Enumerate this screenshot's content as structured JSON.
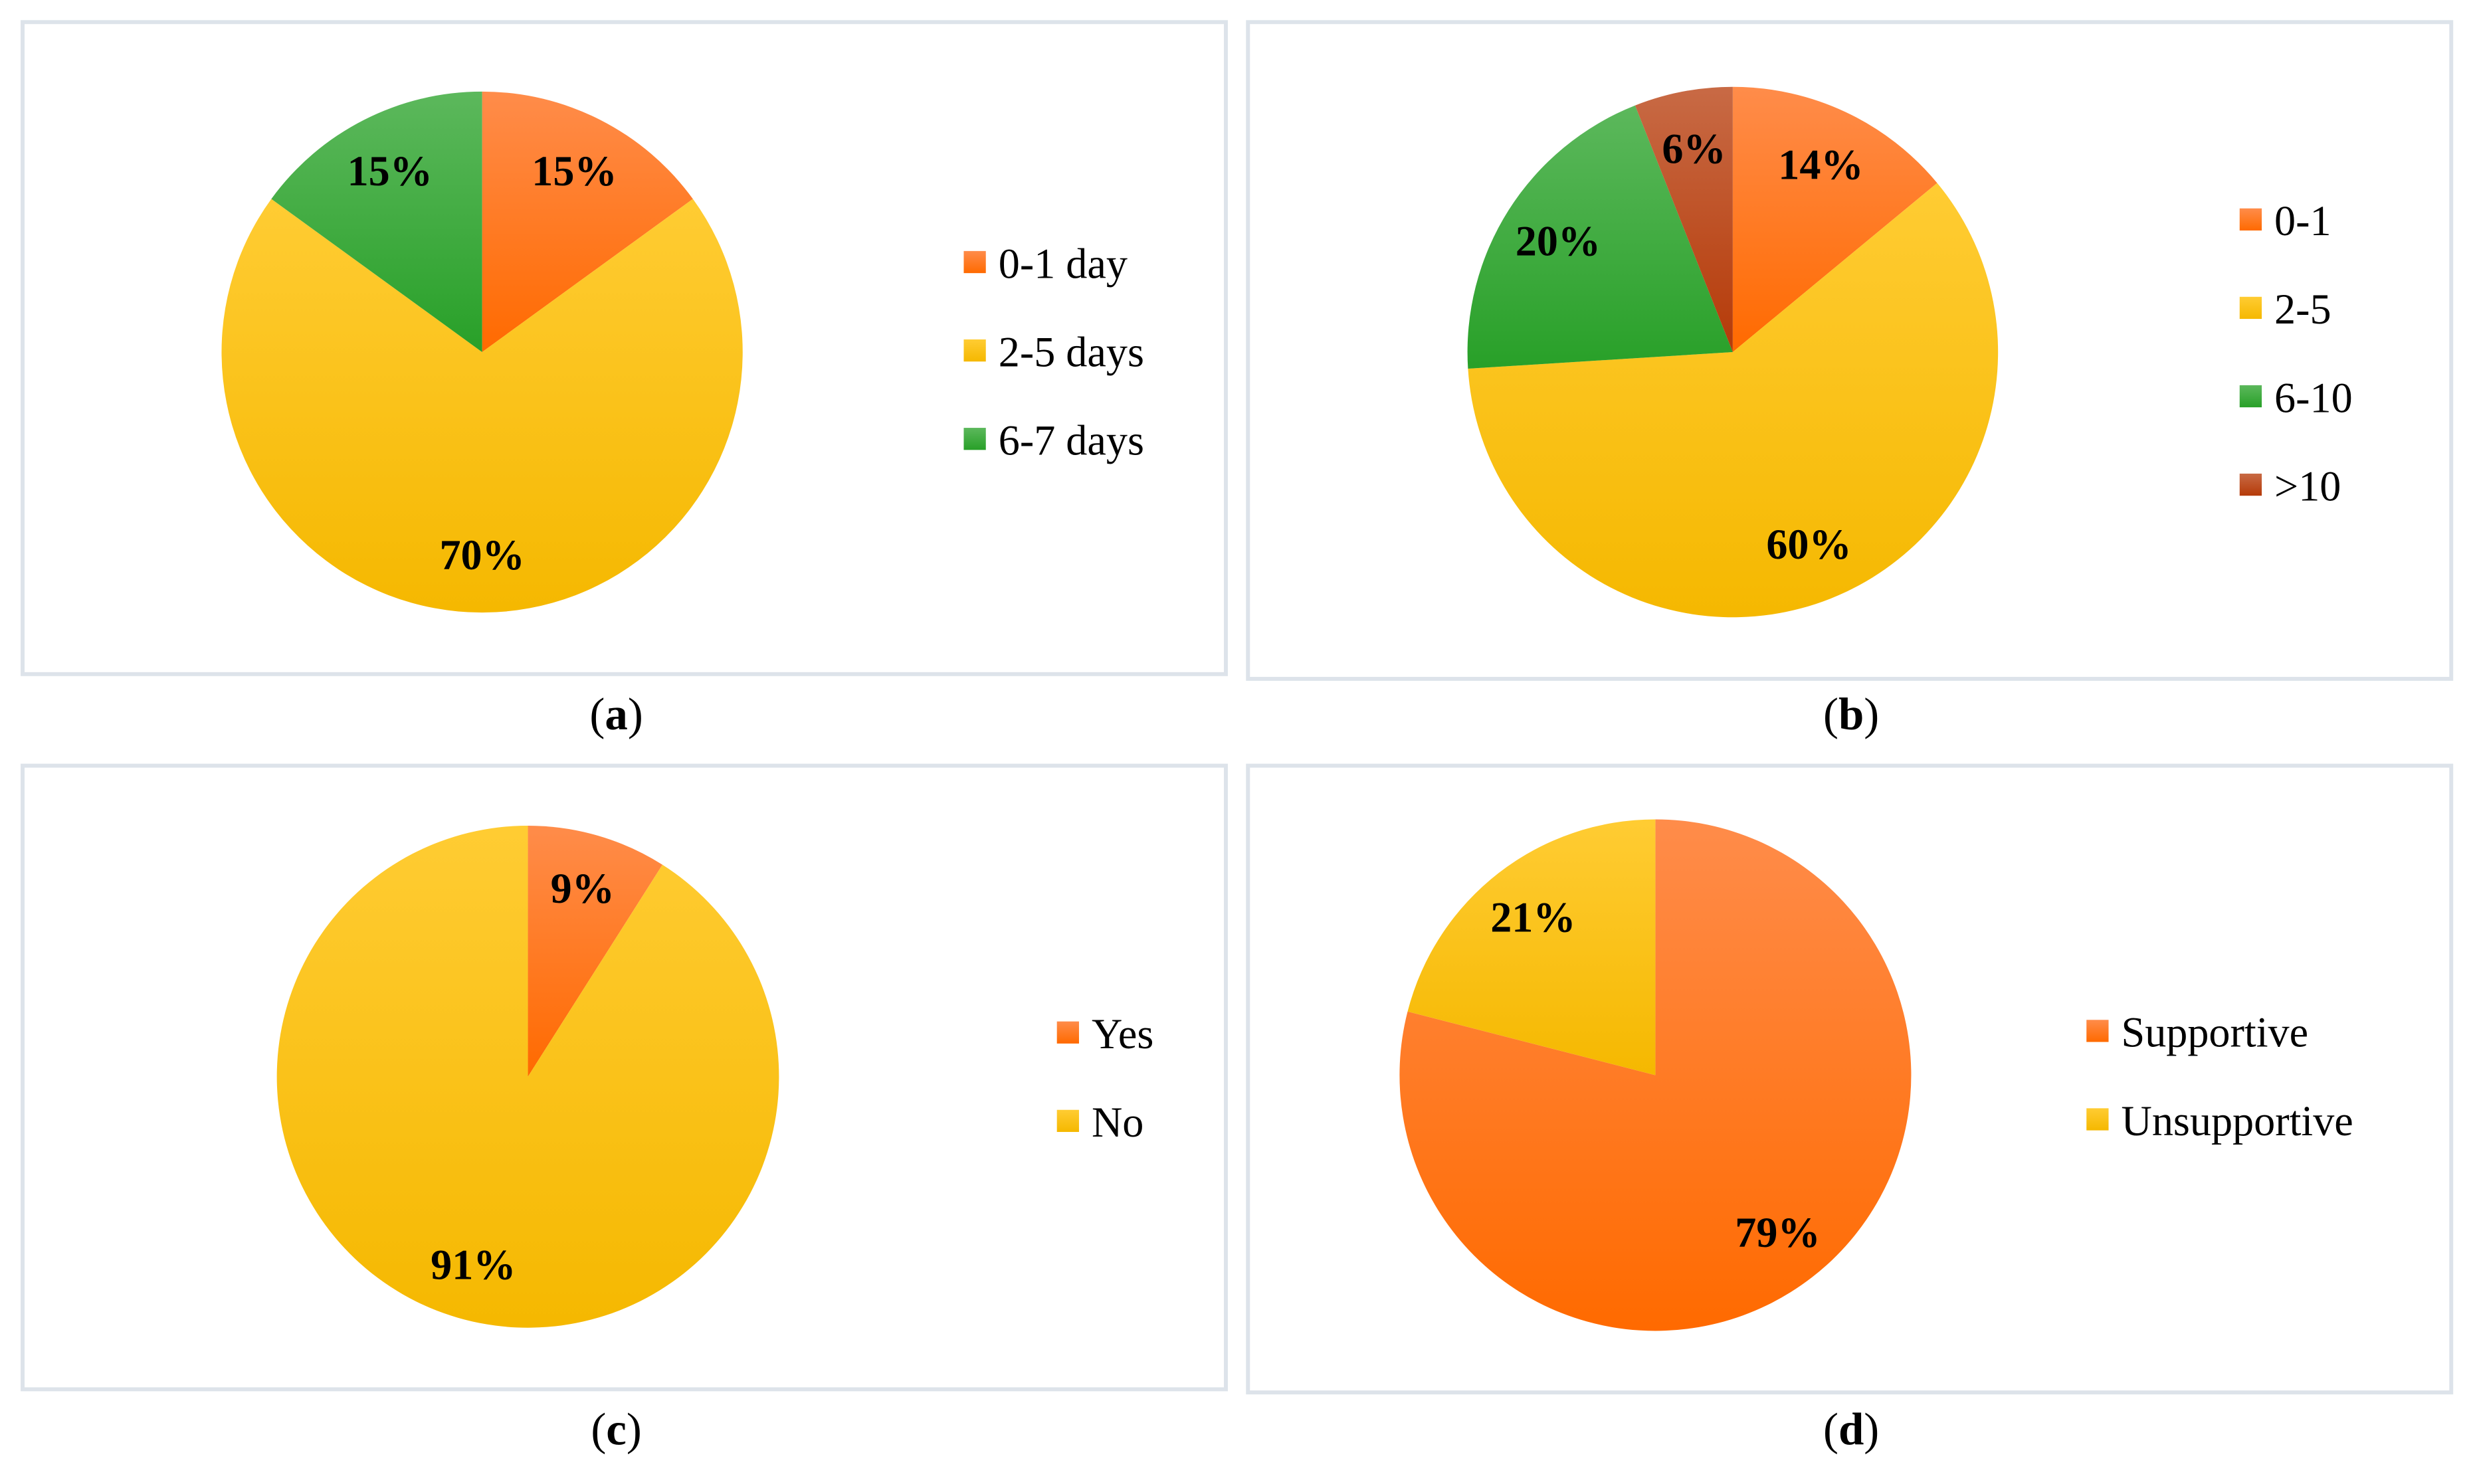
{
  "colors": {
    "orange": [
      "#ff8c4a",
      "#ff6a00"
    ],
    "yellow": [
      "#ffcc33",
      "#f5b800"
    ],
    "green": [
      "#5cb85c",
      "#28a028"
    ],
    "darkred": [
      "#c86a45",
      "#b53a08"
    ]
  },
  "chart_data": [
    {
      "type": "pie",
      "caption_letter": "a",
      "labels": [
        "0-1 day",
        "2-5 days",
        "6-7 days"
      ],
      "values": [
        15,
        70,
        15
      ],
      "data_labels": [
        "15%",
        "70%",
        "15%"
      ],
      "colors": [
        "orange",
        "yellow",
        "green"
      ],
      "legend_position": "right",
      "start": "top-clockwise"
    },
    {
      "type": "pie",
      "caption_letter": "b",
      "labels": [
        "0-1",
        "2-5",
        "6-10",
        ">10"
      ],
      "values": [
        14,
        60,
        20,
        6
      ],
      "data_labels": [
        "14%",
        "60%",
        "20%",
        "6%"
      ],
      "colors": [
        "orange",
        "yellow",
        "green",
        "darkred"
      ],
      "legend_position": "right",
      "start": "top-clockwise"
    },
    {
      "type": "pie",
      "caption_letter": "c",
      "labels": [
        "Yes",
        "No"
      ],
      "values": [
        9,
        91
      ],
      "data_labels": [
        "9%",
        "91%"
      ],
      "colors": [
        "orange",
        "yellow"
      ],
      "legend_position": "right",
      "start": "top-clockwise"
    },
    {
      "type": "pie",
      "caption_letter": "d",
      "labels": [
        "Supportive",
        "Unsupportive"
      ],
      "values": [
        79,
        21
      ],
      "data_labels": [
        "79%",
        "21%"
      ],
      "colors": [
        "orange",
        "yellow"
      ],
      "legend_position": "right",
      "start": "top-clockwise"
    }
  ]
}
